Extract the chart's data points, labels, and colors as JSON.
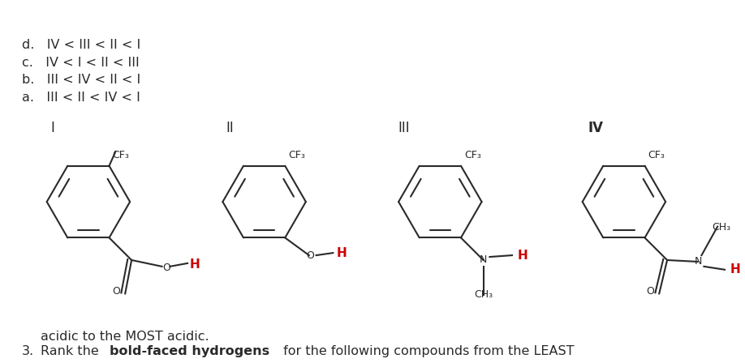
{
  "bg_color": "#ffffff",
  "black": "#2a2a2a",
  "red": "#cc0000",
  "answers": [
    "a.   III < II < IV < I",
    "b.   III < IV < II < I",
    "c.   IV < I < II < III",
    "d.   IV < III < II < I"
  ]
}
